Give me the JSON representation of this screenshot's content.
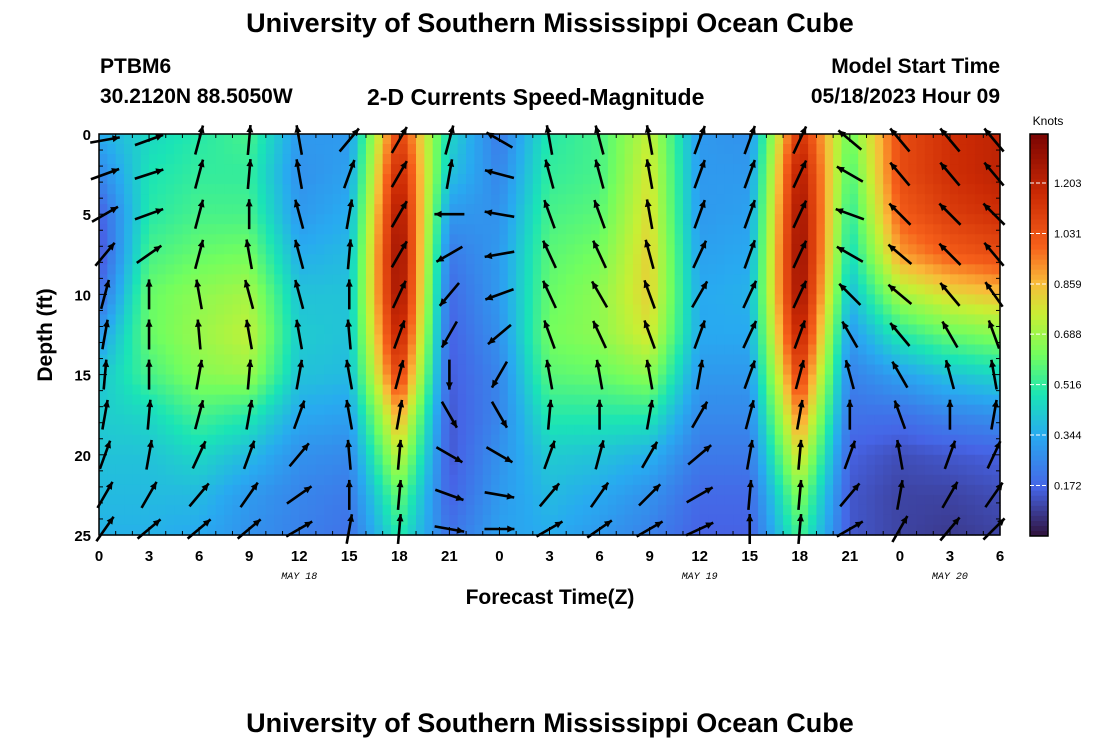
{
  "titles": {
    "top": "University of Southern Mississippi Ocean Cube",
    "bottom": "University of Southern Mississippi Ocean Cube"
  },
  "header": {
    "station": "PTBM6",
    "coords": "30.2120N  88.5050W",
    "plot_title": "2-D Currents Speed-Magnitude",
    "model_start_label": "Model Start Time",
    "model_start_value": "05/18/2023 Hour 09"
  },
  "chart_data": {
    "type": "heatmap",
    "title": "2-D Currents Speed-Magnitude",
    "xlabel": "Forecast Time(Z)",
    "ylabel": "Depth (ft)",
    "x_tick_labels": [
      "0",
      "3",
      "6",
      "9",
      "12",
      "15",
      "18",
      "21",
      "0",
      "3",
      "6",
      "9",
      "12",
      "15",
      "18",
      "21",
      "0",
      "3",
      "6"
    ],
    "x_hours_range": [
      0,
      54
    ],
    "y_ticks": [
      "0",
      "5",
      "10",
      "15",
      "20",
      "25"
    ],
    "ylim": [
      25,
      0
    ],
    "day_labels": [
      {
        "text": "MAY 18",
        "hour": 12
      },
      {
        "text": "MAY 19",
        "hour": 36
      },
      {
        "text": "MAY 20",
        "hour": 51
      }
    ],
    "colorbar": {
      "unit": "Knots",
      "ticks": [
        "1.203",
        "1.031",
        "0.859",
        "0.688",
        "0.516",
        "0.344",
        "0.172"
      ],
      "tick_values": [
        1.203,
        1.031,
        0.859,
        0.688,
        0.516,
        0.344,
        0.172
      ],
      "range": [
        0,
        1.37
      ]
    },
    "depth_rows": [
      0,
      2.5,
      5,
      7.5,
      10,
      12.5,
      15,
      17.5,
      20,
      22.5,
      25
    ],
    "columns": [
      {
        "hour": 0,
        "speeds": [
          0.35,
          0.25,
          0.15,
          0.12,
          0.18,
          0.3,
          0.4,
          0.42,
          0.4,
          0.38,
          0.36
        ]
      },
      {
        "hour": 3,
        "speeds": [
          0.45,
          0.48,
          0.5,
          0.55,
          0.6,
          0.6,
          0.55,
          0.45,
          0.4,
          0.38,
          0.36
        ]
      },
      {
        "hour": 6,
        "speeds": [
          0.5,
          0.52,
          0.55,
          0.6,
          0.66,
          0.68,
          0.65,
          0.55,
          0.45,
          0.38,
          0.34
        ]
      },
      {
        "hour": 9,
        "speeds": [
          0.55,
          0.52,
          0.55,
          0.62,
          0.7,
          0.74,
          0.68,
          0.5,
          0.38,
          0.3,
          0.28
        ]
      },
      {
        "hour": 12,
        "speeds": [
          0.3,
          0.28,
          0.3,
          0.35,
          0.4,
          0.42,
          0.4,
          0.34,
          0.28,
          0.25,
          0.24
        ]
      },
      {
        "hour": 15,
        "speeds": [
          0.3,
          0.32,
          0.35,
          0.38,
          0.4,
          0.4,
          0.38,
          0.32,
          0.26,
          0.22,
          0.2
        ]
      },
      {
        "hour": 18,
        "speeds": [
          1.1,
          1.2,
          1.28,
          1.32,
          1.3,
          1.22,
          1.1,
          0.9,
          0.75,
          0.6,
          0.5
        ]
      },
      {
        "hour": 21,
        "speeds": [
          0.45,
          0.4,
          0.3,
          0.22,
          0.18,
          0.16,
          0.15,
          0.14,
          0.14,
          0.16,
          0.2
        ]
      },
      {
        "hour": 24,
        "speeds": [
          0.22,
          0.25,
          0.28,
          0.3,
          0.3,
          0.28,
          0.25,
          0.25,
          0.28,
          0.3,
          0.32
        ]
      },
      {
        "hour": 27,
        "speeds": [
          0.5,
          0.52,
          0.55,
          0.58,
          0.6,
          0.62,
          0.58,
          0.5,
          0.42,
          0.38,
          0.35
        ]
      },
      {
        "hour": 30,
        "speeds": [
          0.55,
          0.55,
          0.58,
          0.62,
          0.66,
          0.66,
          0.6,
          0.5,
          0.4,
          0.34,
          0.3
        ]
      },
      {
        "hour": 33,
        "speeds": [
          0.75,
          0.78,
          0.8,
          0.82,
          0.82,
          0.78,
          0.66,
          0.5,
          0.36,
          0.28,
          0.24
        ]
      },
      {
        "hour": 36,
        "speeds": [
          0.3,
          0.3,
          0.3,
          0.32,
          0.34,
          0.34,
          0.3,
          0.26,
          0.22,
          0.18,
          0.16
        ]
      },
      {
        "hour": 39,
        "speeds": [
          0.28,
          0.3,
          0.32,
          0.34,
          0.36,
          0.34,
          0.3,
          0.26,
          0.22,
          0.18,
          0.16
        ]
      },
      {
        "hour": 42,
        "speeds": [
          1.15,
          1.25,
          1.3,
          1.32,
          1.3,
          1.22,
          1.1,
          0.95,
          0.8,
          0.65,
          0.55
        ]
      },
      {
        "hour": 45,
        "speeds": [
          0.6,
          0.55,
          0.5,
          0.45,
          0.38,
          0.3,
          0.24,
          0.2,
          0.16,
          0.14,
          0.14
        ]
      },
      {
        "hour": 48,
        "speeds": [
          1.05,
          1.05,
          1.0,
          0.9,
          0.7,
          0.5,
          0.32,
          0.2,
          0.12,
          0.1,
          0.1
        ]
      },
      {
        "hour": 51,
        "speeds": [
          1.15,
          1.15,
          1.1,
          1.0,
          0.8,
          0.6,
          0.4,
          0.25,
          0.14,
          0.1,
          0.08
        ]
      },
      {
        "hour": 54,
        "speeds": [
          1.2,
          1.2,
          1.15,
          1.05,
          0.85,
          0.65,
          0.45,
          0.28,
          0.16,
          0.12,
          0.1
        ]
      }
    ],
    "vectors_deg_from_north": [
      {
        "hour": 0,
        "dirs": [
          80,
          70,
          60,
          40,
          15,
          10,
          5,
          10,
          20,
          30,
          35
        ]
      },
      {
        "hour": 3,
        "dirs": [
          70,
          72,
          70,
          55,
          0,
          0,
          0,
          5,
          10,
          30,
          50
        ]
      },
      {
        "hour": 6,
        "dirs": [
          15,
          15,
          15,
          15,
          -10,
          -5,
          10,
          15,
          25,
          40,
          50
        ]
      },
      {
        "hour": 9,
        "dirs": [
          5,
          5,
          0,
          -10,
          -15,
          -10,
          5,
          10,
          20,
          35,
          50
        ]
      },
      {
        "hour": 12,
        "dirs": [
          -10,
          -10,
          -15,
          -15,
          -15,
          -10,
          10,
          20,
          40,
          55,
          60
        ]
      },
      {
        "hour": 15,
        "dirs": [
          40,
          20,
          10,
          5,
          0,
          -5,
          -10,
          -10,
          -5,
          0,
          10
        ]
      },
      {
        "hour": 18,
        "dirs": [
          30,
          30,
          30,
          30,
          25,
          20,
          15,
          10,
          5,
          5,
          5
        ]
      },
      {
        "hour": 21,
        "dirs": [
          15,
          10,
          -90,
          -120,
          -140,
          -150,
          -180,
          150,
          120,
          110,
          100
        ]
      },
      {
        "hour": 24,
        "dirs": [
          -60,
          -75,
          -80,
          -100,
          -110,
          -130,
          -150,
          150,
          120,
          100,
          90
        ]
      },
      {
        "hour": 27,
        "dirs": [
          -10,
          -15,
          -20,
          -25,
          -25,
          -20,
          -10,
          5,
          20,
          40,
          60
        ]
      },
      {
        "hour": 30,
        "dirs": [
          -15,
          -15,
          -20,
          -25,
          -30,
          -25,
          -10,
          0,
          15,
          35,
          55
        ]
      },
      {
        "hour": 33,
        "dirs": [
          -10,
          -10,
          -10,
          -15,
          -20,
          -20,
          -10,
          10,
          30,
          45,
          60
        ]
      },
      {
        "hour": 36,
        "dirs": [
          20,
          20,
          20,
          25,
          30,
          20,
          10,
          30,
          50,
          60,
          65
        ]
      },
      {
        "hour": 39,
        "dirs": [
          20,
          20,
          20,
          20,
          25,
          25,
          20,
          15,
          10,
          5,
          0
        ]
      },
      {
        "hour": 42,
        "dirs": [
          25,
          25,
          25,
          25,
          25,
          20,
          15,
          10,
          5,
          5,
          5
        ]
      },
      {
        "hour": 45,
        "dirs": [
          -50,
          -60,
          -70,
          -60,
          -45,
          -30,
          -15,
          0,
          20,
          40,
          60
        ]
      },
      {
        "hour": 48,
        "dirs": [
          -40,
          -40,
          -45,
          -50,
          -50,
          -40,
          -30,
          -20,
          -10,
          10,
          30
        ]
      },
      {
        "hour": 51,
        "dirs": [
          -40,
          -40,
          -45,
          -45,
          -40,
          -30,
          -15,
          0,
          20,
          30,
          40
        ]
      },
      {
        "hour": 54,
        "dirs": [
          -40,
          -40,
          -45,
          -40,
          -35,
          -20,
          -10,
          10,
          25,
          35,
          45
        ]
      }
    ],
    "grid": false
  }
}
